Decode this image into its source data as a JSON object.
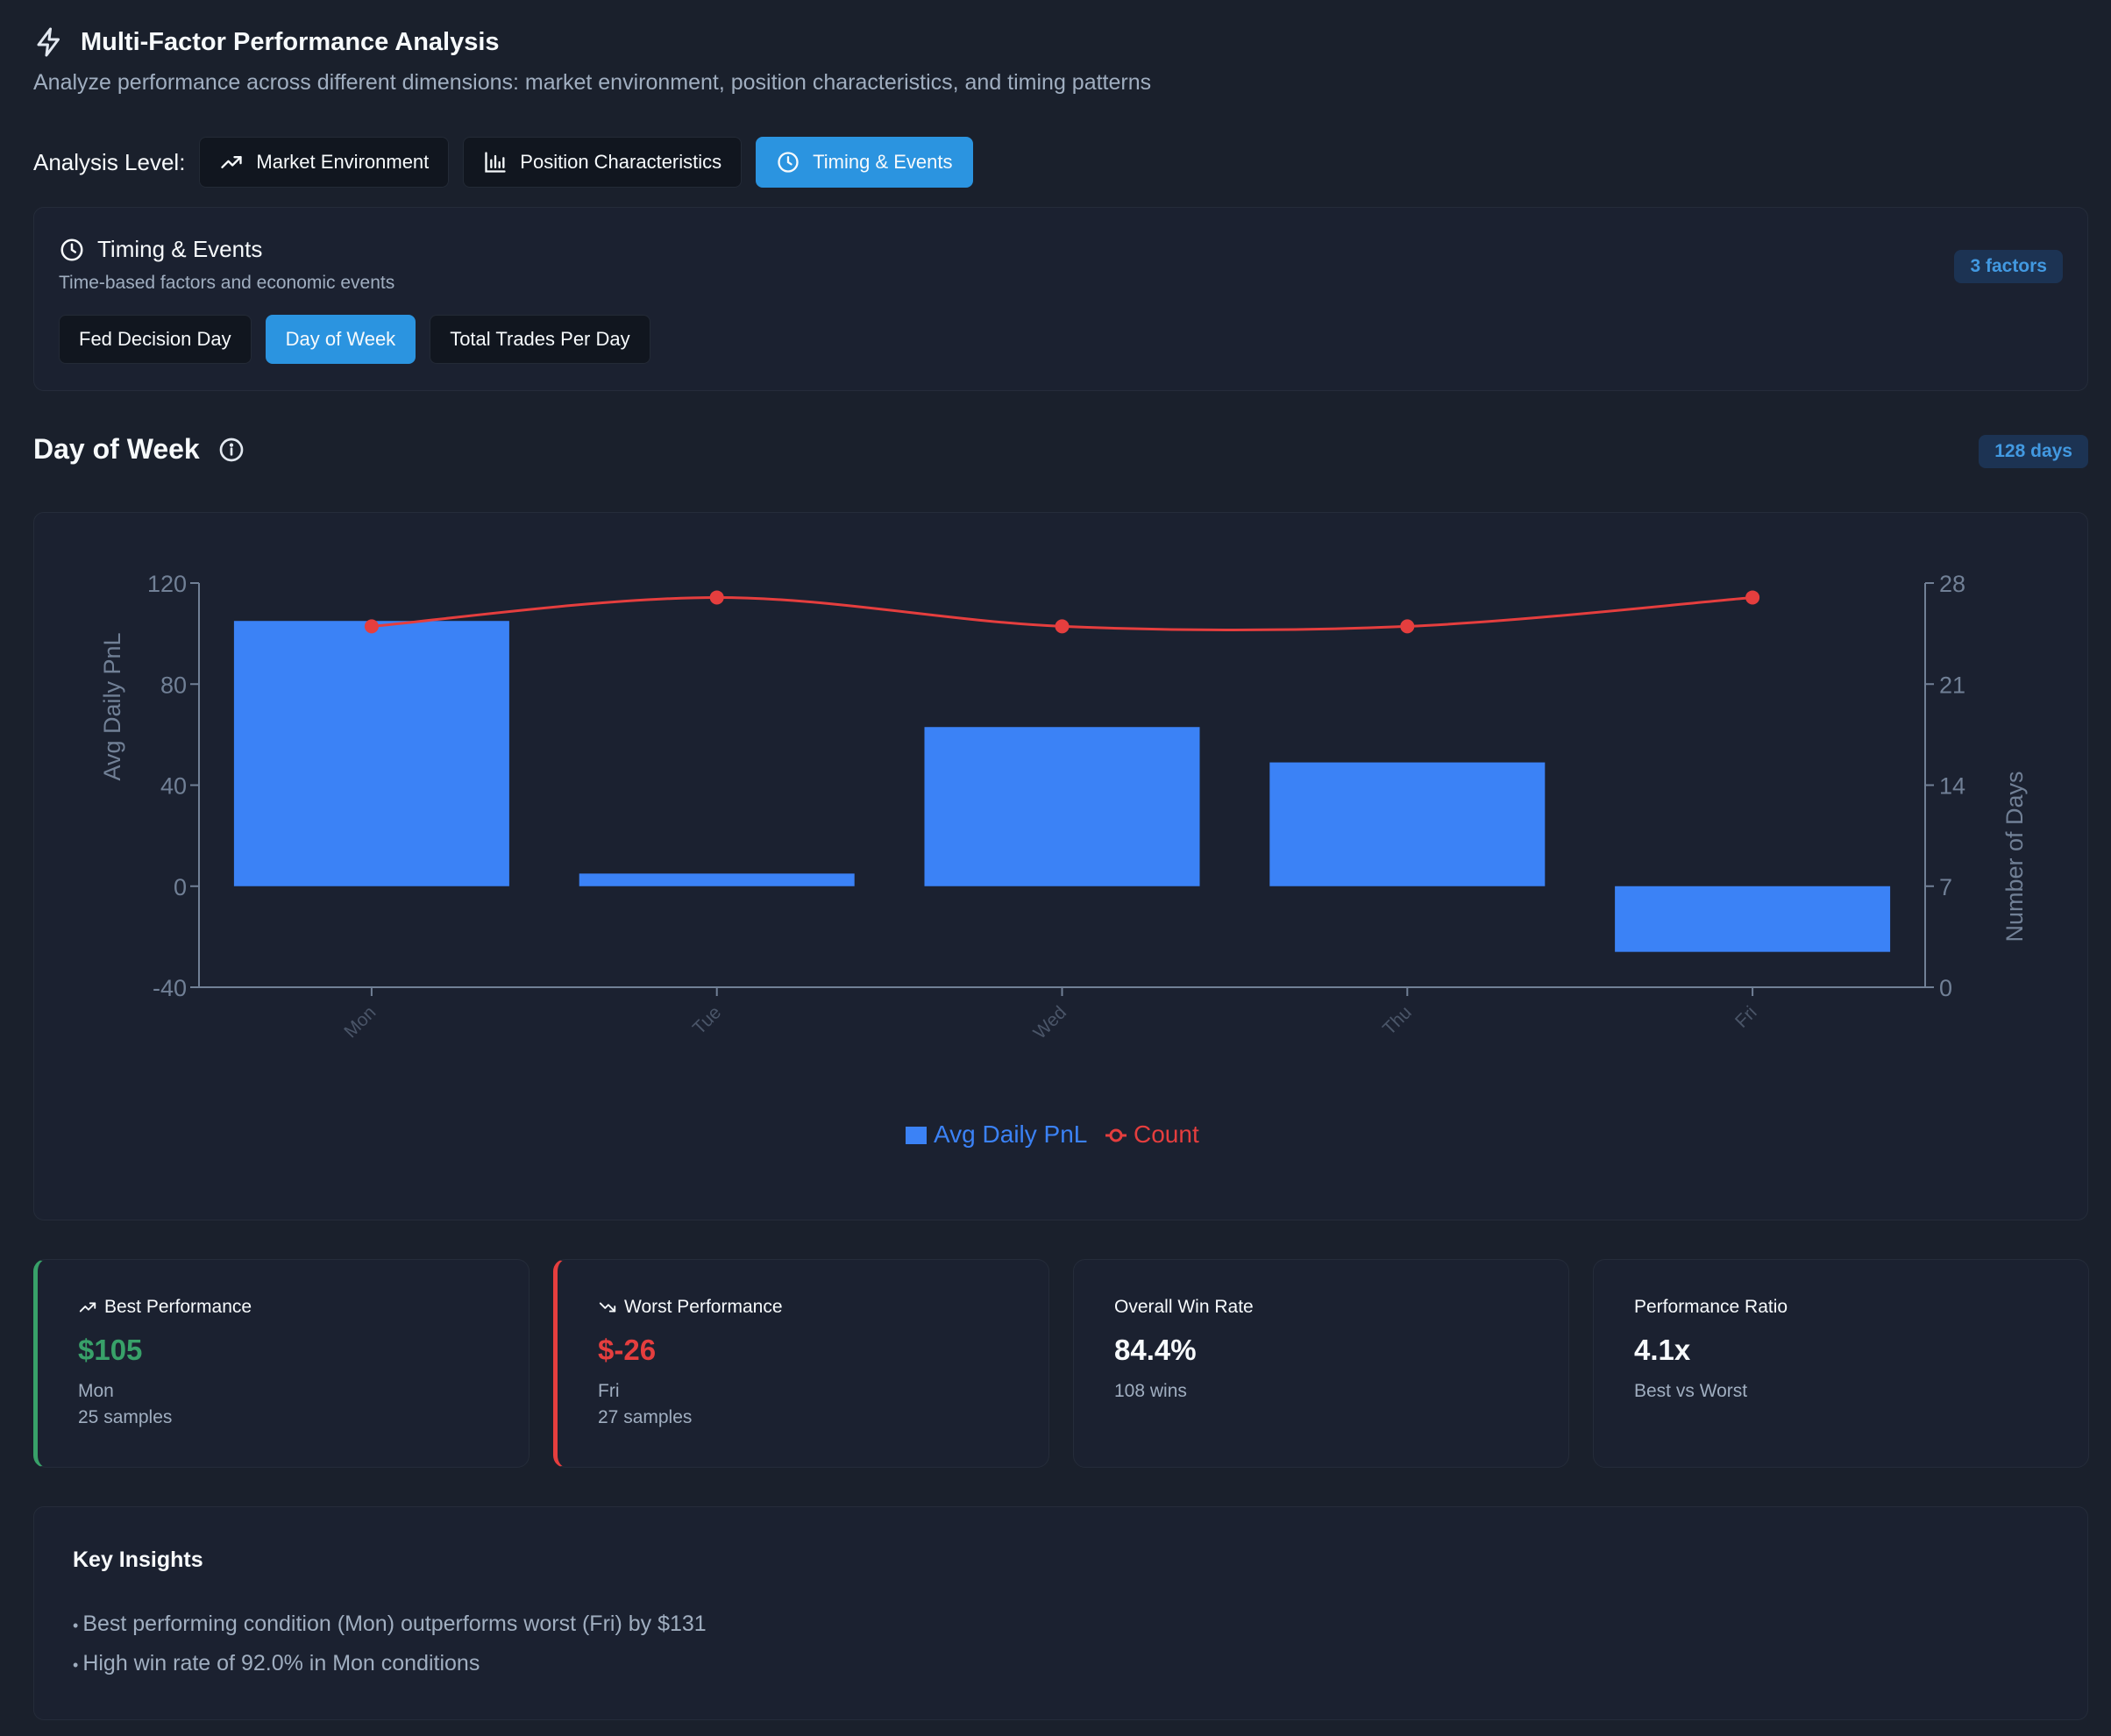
{
  "header": {
    "title": "Multi-Factor Performance Analysis",
    "subtitle": "Analyze performance across different dimensions: market environment, position characteristics, and timing patterns",
    "icon": "lightning-icon"
  },
  "analysis_level": {
    "label": "Analysis Level:",
    "options": [
      {
        "label": "Market Environment",
        "icon": "trending-up-icon",
        "active": false
      },
      {
        "label": "Position Characteristics",
        "icon": "bar-chart-icon",
        "active": false
      },
      {
        "label": "Timing & Events",
        "icon": "clock-icon",
        "active": true
      }
    ]
  },
  "group": {
    "title": "Timing & Events",
    "description": "Time-based factors and economic events",
    "badge": "3 factors",
    "factors": [
      {
        "label": "Fed Decision Day",
        "active": false
      },
      {
        "label": "Day of Week",
        "active": true
      },
      {
        "label": "Total Trades Per Day",
        "active": false
      }
    ]
  },
  "section": {
    "title": "Day of Week",
    "badge": "128 days"
  },
  "colors": {
    "bar": "#3b82f6",
    "line": "#e53e3e",
    "best": "#38a169",
    "worst": "#e53e3e",
    "accent": "#2b94e0"
  },
  "chart_data": {
    "type": "bar",
    "categories": [
      "Mon",
      "Tue",
      "Wed",
      "Thu",
      "Fri"
    ],
    "series": [
      {
        "name": "Avg Daily PnL",
        "type": "bar",
        "axis": "left",
        "values": [
          105,
          5,
          63,
          49,
          -26
        ]
      },
      {
        "name": "Count",
        "type": "line",
        "axis": "right",
        "values": [
          25,
          27,
          25,
          25,
          27
        ]
      }
    ],
    "ylabel": "Avg Daily PnL",
    "y2label": "Number of Days",
    "ylim": [
      -40,
      120
    ],
    "y2lim": [
      0,
      28
    ],
    "yticks": [
      120,
      80,
      40,
      0,
      -40
    ],
    "y2ticks": [
      28,
      21,
      14,
      7,
      0
    ],
    "legend": [
      "Avg Daily PnL",
      "Count"
    ],
    "legend_position": "bottom",
    "grid": false
  },
  "stats": {
    "best": {
      "label": "Best Performance",
      "icon": "trending-up-icon",
      "value": "$105",
      "sub1": "Mon",
      "sub2": "25 samples"
    },
    "worst": {
      "label": "Worst Performance",
      "icon": "trending-down-icon",
      "value": "$-26",
      "sub1": "Fri",
      "sub2": "27 samples"
    },
    "win_rate": {
      "label": "Overall Win Rate",
      "value": "84.4%",
      "sub1": "108 wins"
    },
    "ratio": {
      "label": "Performance Ratio",
      "value": "4.1x",
      "sub1": "Best vs Worst"
    }
  },
  "insights": {
    "title": "Key Insights",
    "items": [
      "Best performing condition (Mon) outperforms worst (Fri) by $131",
      "High win rate of 92.0% in Mon conditions"
    ]
  }
}
